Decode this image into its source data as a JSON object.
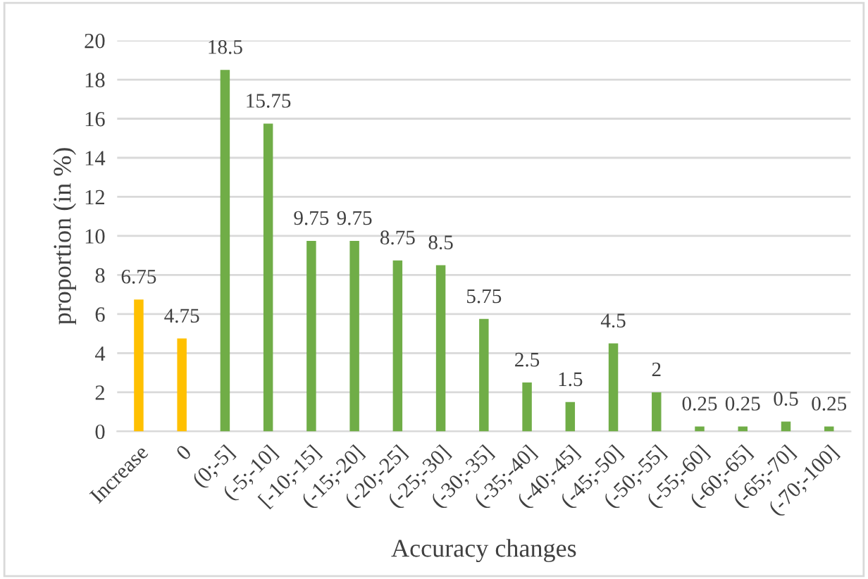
{
  "chart_data": {
    "type": "bar",
    "xlabel": "Accuracy changes",
    "ylabel": "proportion (in %)",
    "categories": [
      "Increase",
      "0",
      "(0;-5]",
      "(-5;-10]",
      "[-10;-15]",
      "(-15;-20]",
      "(-20;-25]",
      "(-25;-30]",
      "(-30;-35]",
      "(-35;-40]",
      "(-40;-45]",
      "(-45;-50]",
      "(-50;-55]",
      "(-55;-60]",
      "(-60;-65]",
      "(-65;-70]",
      "(-70;-100]"
    ],
    "values": [
      6.75,
      4.75,
      18.5,
      15.75,
      9.75,
      9.75,
      8.75,
      8.5,
      5.75,
      2.5,
      1.5,
      4.5,
      2,
      0.25,
      0.25,
      0.5,
      0.25
    ],
    "colors": [
      "#ffc000",
      "#ffc000",
      "#70ad47",
      "#70ad47",
      "#70ad47",
      "#70ad47",
      "#70ad47",
      "#70ad47",
      "#70ad47",
      "#70ad47",
      "#70ad47",
      "#70ad47",
      "#70ad47",
      "#70ad47",
      "#70ad47",
      "#70ad47",
      "#70ad47"
    ],
    "ylim": [
      0,
      20
    ],
    "yticks": [
      0,
      2,
      4,
      6,
      8,
      10,
      12,
      14,
      16,
      18,
      20
    ],
    "grid": "y",
    "data_labels": true
  }
}
